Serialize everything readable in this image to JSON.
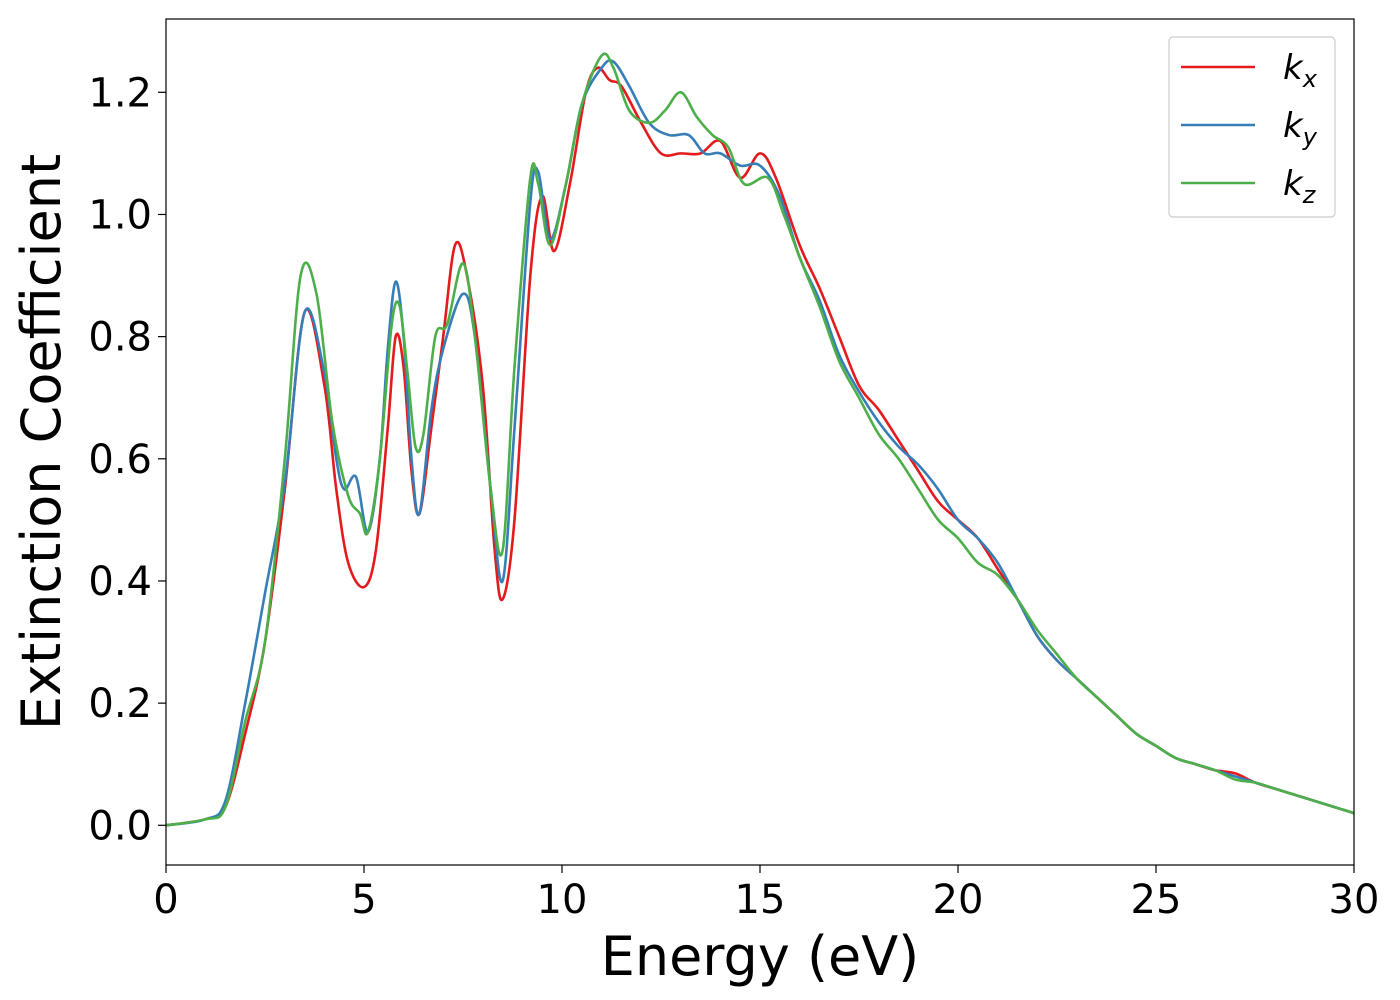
{
  "chart_data": {
    "type": "line",
    "xlabel": "Energy (eV)",
    "ylabel": "Extinction Coefficient",
    "xlim": [
      0,
      30
    ],
    "ylim": [
      -0.065,
      1.32
    ],
    "xticks": [
      "0",
      "5",
      "10",
      "15",
      "20",
      "25",
      "30"
    ],
    "yticks": [
      "0.0",
      "0.2",
      "0.4",
      "0.6",
      "0.8",
      "1.0",
      "1.2"
    ],
    "grid": false,
    "legend_position": "top-right",
    "series": [
      {
        "name": "k",
        "subscript": "x",
        "color": "#e41a1c",
        "points": [
          [
            0,
            0
          ],
          [
            1,
            0.01
          ],
          [
            1.5,
            0.03
          ],
          [
            2,
            0.15
          ],
          [
            2.5,
            0.3
          ],
          [
            3,
            0.55
          ],
          [
            3.5,
            0.84
          ],
          [
            4,
            0.72
          ],
          [
            4.3,
            0.55
          ],
          [
            4.6,
            0.43
          ],
          [
            5,
            0.39
          ],
          [
            5.3,
            0.45
          ],
          [
            5.6,
            0.65
          ],
          [
            5.8,
            0.8
          ],
          [
            6,
            0.75
          ],
          [
            6.2,
            0.58
          ],
          [
            6.4,
            0.51
          ],
          [
            6.7,
            0.65
          ],
          [
            7,
            0.8
          ],
          [
            7.3,
            0.95
          ],
          [
            7.6,
            0.9
          ],
          [
            8,
            0.72
          ],
          [
            8.3,
            0.45
          ],
          [
            8.5,
            0.37
          ],
          [
            8.8,
            0.5
          ],
          [
            9.2,
            0.9
          ],
          [
            9.5,
            1.03
          ],
          [
            9.8,
            0.94
          ],
          [
            10.2,
            1.05
          ],
          [
            10.6,
            1.2
          ],
          [
            10.9,
            1.24
          ],
          [
            11.2,
            1.22
          ],
          [
            11.5,
            1.21
          ],
          [
            12,
            1.15
          ],
          [
            12.5,
            1.1
          ],
          [
            13,
            1.1
          ],
          [
            13.5,
            1.1
          ],
          [
            14,
            1.12
          ],
          [
            14.5,
            1.06
          ],
          [
            15,
            1.1
          ],
          [
            15.4,
            1.06
          ],
          [
            16,
            0.95
          ],
          [
            16.5,
            0.88
          ],
          [
            17,
            0.8
          ],
          [
            17.5,
            0.72
          ],
          [
            18,
            0.68
          ],
          [
            18.5,
            0.63
          ],
          [
            19,
            0.58
          ],
          [
            19.5,
            0.53
          ],
          [
            20,
            0.5
          ],
          [
            20.5,
            0.47
          ],
          [
            21,
            0.42
          ],
          [
            21.5,
            0.37
          ],
          [
            22,
            0.31
          ],
          [
            22.5,
            0.27
          ],
          [
            23,
            0.24
          ],
          [
            23.5,
            0.21
          ],
          [
            24,
            0.18
          ],
          [
            24.5,
            0.15
          ],
          [
            25,
            0.13
          ],
          [
            25.5,
            0.11
          ],
          [
            26,
            0.1
          ],
          [
            26.5,
            0.09
          ],
          [
            27,
            0.085
          ],
          [
            27.5,
            0.07
          ],
          [
            28,
            0.06
          ],
          [
            28.5,
            0.05
          ],
          [
            29,
            0.04
          ],
          [
            29.5,
            0.03
          ],
          [
            30,
            0.02
          ]
        ]
      },
      {
        "name": "k",
        "subscript": "y",
        "color": "#377eb8",
        "points": [
          [
            0,
            0
          ],
          [
            1,
            0.01
          ],
          [
            1.5,
            0.04
          ],
          [
            2,
            0.2
          ],
          [
            2.5,
            0.38
          ],
          [
            3,
            0.56
          ],
          [
            3.5,
            0.84
          ],
          [
            4,
            0.74
          ],
          [
            4.3,
            0.6
          ],
          [
            4.5,
            0.55
          ],
          [
            4.8,
            0.57
          ],
          [
            5.1,
            0.48
          ],
          [
            5.4,
            0.6
          ],
          [
            5.6,
            0.78
          ],
          [
            5.8,
            0.89
          ],
          [
            6,
            0.8
          ],
          [
            6.2,
            0.6
          ],
          [
            6.4,
            0.51
          ],
          [
            6.7,
            0.68
          ],
          [
            7,
            0.78
          ],
          [
            7.5,
            0.87
          ],
          [
            7.8,
            0.8
          ],
          [
            8.2,
            0.55
          ],
          [
            8.5,
            0.4
          ],
          [
            8.8,
            0.65
          ],
          [
            9.2,
            1.02
          ],
          [
            9.4,
            1.07
          ],
          [
            9.7,
            0.96
          ],
          [
            10.1,
            1.05
          ],
          [
            10.5,
            1.18
          ],
          [
            11,
            1.24
          ],
          [
            11.3,
            1.25
          ],
          [
            11.7,
            1.21
          ],
          [
            12.2,
            1.15
          ],
          [
            12.7,
            1.13
          ],
          [
            13.2,
            1.13
          ],
          [
            13.6,
            1.1
          ],
          [
            14,
            1.1
          ],
          [
            14.5,
            1.08
          ],
          [
            15,
            1.08
          ],
          [
            15.5,
            1.03
          ],
          [
            16,
            0.93
          ],
          [
            16.5,
            0.86
          ],
          [
            17,
            0.77
          ],
          [
            17.5,
            0.71
          ],
          [
            18,
            0.66
          ],
          [
            18.5,
            0.62
          ],
          [
            19,
            0.59
          ],
          [
            19.5,
            0.55
          ],
          [
            20,
            0.5
          ],
          [
            20.5,
            0.47
          ],
          [
            21,
            0.43
          ],
          [
            21.5,
            0.37
          ],
          [
            22,
            0.31
          ],
          [
            22.5,
            0.27
          ],
          [
            23,
            0.24
          ],
          [
            23.5,
            0.21
          ],
          [
            24,
            0.18
          ],
          [
            24.5,
            0.15
          ],
          [
            25,
            0.13
          ],
          [
            25.5,
            0.11
          ],
          [
            26,
            0.1
          ],
          [
            26.5,
            0.09
          ],
          [
            27,
            0.08
          ],
          [
            27.5,
            0.07
          ],
          [
            28,
            0.06
          ],
          [
            28.5,
            0.05
          ],
          [
            29,
            0.04
          ],
          [
            29.5,
            0.03
          ],
          [
            30,
            0.02
          ]
        ]
      },
      {
        "name": "k",
        "subscript": "z",
        "color": "#4daf4a",
        "points": [
          [
            0,
            0
          ],
          [
            1,
            0.01
          ],
          [
            1.5,
            0.03
          ],
          [
            2,
            0.17
          ],
          [
            2.5,
            0.3
          ],
          [
            3,
            0.6
          ],
          [
            3.4,
            0.9
          ],
          [
            3.8,
            0.87
          ],
          [
            4.2,
            0.66
          ],
          [
            4.6,
            0.54
          ],
          [
            4.9,
            0.51
          ],
          [
            5.1,
            0.48
          ],
          [
            5.4,
            0.6
          ],
          [
            5.7,
            0.82
          ],
          [
            5.9,
            0.85
          ],
          [
            6.1,
            0.74
          ],
          [
            6.3,
            0.62
          ],
          [
            6.5,
            0.64
          ],
          [
            6.8,
            0.8
          ],
          [
            7.1,
            0.82
          ],
          [
            7.5,
            0.92
          ],
          [
            7.8,
            0.8
          ],
          [
            8.2,
            0.55
          ],
          [
            8.5,
            0.45
          ],
          [
            8.8,
            0.75
          ],
          [
            9.2,
            1.06
          ],
          [
            9.4,
            1.05
          ],
          [
            9.7,
            0.95
          ],
          [
            10.1,
            1.05
          ],
          [
            10.5,
            1.18
          ],
          [
            11,
            1.26
          ],
          [
            11.3,
            1.24
          ],
          [
            11.7,
            1.17
          ],
          [
            12.2,
            1.15
          ],
          [
            12.6,
            1.17
          ],
          [
            13,
            1.2
          ],
          [
            13.4,
            1.16
          ],
          [
            13.8,
            1.13
          ],
          [
            14.2,
            1.11
          ],
          [
            14.6,
            1.05
          ],
          [
            15.2,
            1.06
          ],
          [
            15.6,
            1.0
          ],
          [
            16,
            0.93
          ],
          [
            16.5,
            0.85
          ],
          [
            17,
            0.76
          ],
          [
            17.5,
            0.7
          ],
          [
            18,
            0.64
          ],
          [
            18.5,
            0.6
          ],
          [
            19,
            0.55
          ],
          [
            19.5,
            0.5
          ],
          [
            20,
            0.47
          ],
          [
            20.5,
            0.43
          ],
          [
            21,
            0.41
          ],
          [
            21.5,
            0.37
          ],
          [
            22,
            0.32
          ],
          [
            22.5,
            0.28
          ],
          [
            23,
            0.24
          ],
          [
            23.5,
            0.21
          ],
          [
            24,
            0.18
          ],
          [
            24.5,
            0.15
          ],
          [
            25,
            0.13
          ],
          [
            25.5,
            0.11
          ],
          [
            26,
            0.1
          ],
          [
            26.5,
            0.09
          ],
          [
            27,
            0.075
          ],
          [
            27.5,
            0.07
          ],
          [
            28,
            0.06
          ],
          [
            28.5,
            0.05
          ],
          [
            29,
            0.04
          ],
          [
            29.5,
            0.03
          ],
          [
            30,
            0.02
          ]
        ]
      }
    ]
  }
}
